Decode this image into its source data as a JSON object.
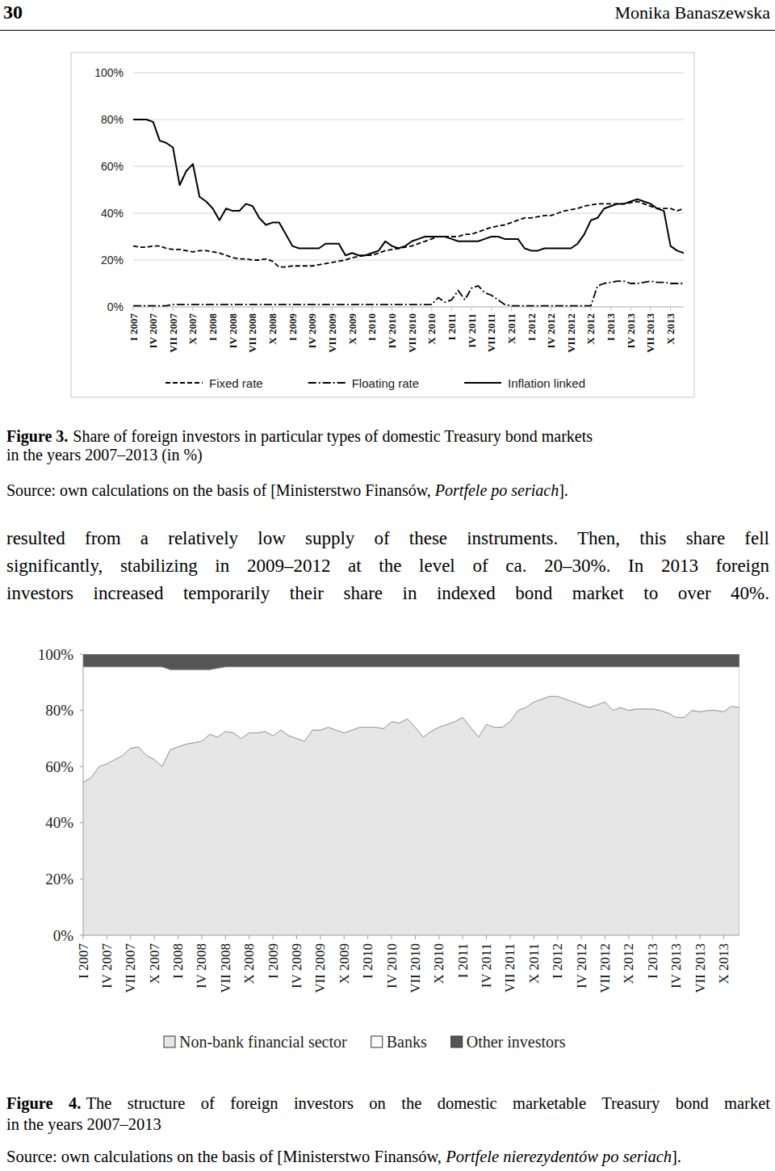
{
  "header": {
    "page": "30",
    "author": "Monika Banaszewska"
  },
  "chart_data": [
    {
      "type": "line",
      "categories": [
        "I 2007",
        null,
        null,
        "IV 2007",
        null,
        null,
        "VII 2007",
        null,
        null,
        "X 2007",
        null,
        null,
        "I 2008",
        null,
        null,
        "IV 2008",
        null,
        null,
        "VII 2008",
        null,
        null,
        "X 2008",
        null,
        null,
        "I 2009",
        null,
        null,
        "IV 2009",
        null,
        null,
        "VII 2009",
        null,
        null,
        "X 2009",
        null,
        null,
        "I 2010",
        null,
        null,
        "IV 2010",
        null,
        null,
        "VII 2010",
        null,
        null,
        "X 2010",
        null,
        null,
        "I 2011",
        null,
        null,
        "IV 2011",
        null,
        null,
        "VII 2011",
        null,
        null,
        "X 2011",
        null,
        null,
        "I 2012",
        null,
        null,
        "IV 2012",
        null,
        null,
        "VII 2012",
        null,
        null,
        "X 2012",
        null,
        null,
        "I 2013",
        null,
        null,
        "IV 2013",
        null,
        null,
        "VII 2013",
        null,
        null,
        "X 2013",
        null,
        null
      ],
      "ylim": [
        0,
        100
      ],
      "yticks": [
        {
          "value": 0,
          "label": "0%"
        },
        {
          "value": 20,
          "label": "20%"
        },
        {
          "value": 40,
          "label": "40%"
        },
        {
          "value": 60,
          "label": "60%"
        },
        {
          "value": 80,
          "label": "80%"
        },
        {
          "value": 100,
          "label": "100%"
        }
      ],
      "grid": true,
      "legend": "bottom",
      "series": [
        {
          "name": "Fixed rate",
          "color": "#000000",
          "line_style": "dashed",
          "values": [
            26,
            25.5,
            25.5,
            26,
            26,
            25,
            24.5,
            24.5,
            24,
            23.5,
            24,
            24,
            23.5,
            23,
            22,
            21,
            20.5,
            20.5,
            20,
            20,
            20.5,
            19.5,
            17,
            17,
            17.5,
            17.5,
            17.5,
            17.5,
            18,
            18.5,
            19,
            19.5,
            20,
            21,
            21.5,
            22,
            22,
            23,
            24,
            24.5,
            25,
            25.5,
            26,
            27,
            28,
            29,
            30,
            30,
            30,
            30,
            31,
            31,
            32,
            33,
            34,
            34.5,
            35,
            36,
            37,
            38,
            38,
            38.5,
            39,
            39,
            40,
            41,
            41.5,
            42,
            43,
            43.5,
            44,
            44,
            44,
            44,
            44,
            44.5,
            45,
            44,
            43,
            42,
            42,
            42,
            41,
            42
          ]
        },
        {
          "name": "Floating rate",
          "color": "#000000",
          "line_style": "dashdot",
          "values": [
            0.5,
            0.5,
            0.5,
            0.5,
            0.5,
            0.5,
            1,
            1,
            1,
            1,
            1,
            1,
            1,
            1,
            1,
            1,
            1,
            1,
            1,
            1,
            1,
            1,
            1,
            1,
            1,
            1,
            1,
            1,
            1,
            1,
            1,
            1,
            1,
            1,
            1,
            1,
            1,
            1,
            1,
            1,
            1,
            1,
            1,
            1,
            1,
            1,
            4,
            2,
            3,
            7,
            3,
            8,
            9,
            6,
            5,
            3,
            1,
            0.5,
            0.5,
            0.5,
            0.5,
            0.5,
            0.5,
            0.5,
            0.5,
            0.5,
            0.5,
            0.5,
            0.5,
            0.5,
            9,
            10,
            10.5,
            11,
            11,
            10,
            10,
            10.5,
            11,
            10.5,
            10.5,
            10,
            10,
            10
          ]
        },
        {
          "name": "Inflation linked",
          "color": "#000000",
          "line_style": "solid",
          "values": [
            80,
            80,
            80,
            79,
            71,
            70,
            68,
            52,
            58,
            61,
            47,
            45,
            42,
            37,
            42,
            41,
            41,
            44,
            43,
            38,
            35,
            36,
            36,
            31,
            26,
            25,
            25,
            25,
            25,
            27,
            27,
            27,
            22,
            23,
            22,
            22,
            23,
            24,
            28,
            26,
            25,
            26,
            28,
            29,
            30,
            30,
            30,
            30,
            29,
            28,
            28,
            28,
            28,
            29,
            30,
            30,
            29,
            29,
            29,
            25,
            24,
            24,
            25,
            25,
            25,
            25,
            25,
            27,
            31,
            37,
            38,
            42,
            43,
            44,
            44,
            45,
            46,
            45,
            44,
            42,
            41,
            26,
            24,
            23
          ]
        }
      ]
    },
    {
      "type": "area",
      "stacked": true,
      "categories": [
        "I 2007",
        null,
        null,
        "IV 2007",
        null,
        null,
        "VII 2007",
        null,
        null,
        "X 2007",
        null,
        null,
        "I 2008",
        null,
        null,
        "IV 2008",
        null,
        null,
        "VII 2008",
        null,
        null,
        "X 2008",
        null,
        null,
        "I 2009",
        null,
        null,
        "IV 2009",
        null,
        null,
        "VII 2009",
        null,
        null,
        "X 2009",
        null,
        null,
        "I 2010",
        null,
        null,
        "IV 2010",
        null,
        null,
        "VII 2010",
        null,
        null,
        "X 2010",
        null,
        null,
        "I 2011",
        null,
        null,
        "IV 2011",
        null,
        null,
        "VII 2011",
        null,
        null,
        "X 2011",
        null,
        null,
        "I 2012",
        null,
        null,
        "IV 2012",
        null,
        null,
        "VII 2012",
        null,
        null,
        "X 2012",
        null,
        null,
        "I 2013",
        null,
        null,
        "IV 2013",
        null,
        null,
        "VII 2013",
        null,
        null,
        "X 2013",
        null,
        null
      ],
      "ylim": [
        0,
        100
      ],
      "yticks": [
        {
          "value": 0,
          "label": "0%"
        },
        {
          "value": 20,
          "label": "20%"
        },
        {
          "value": 40,
          "label": "40%"
        },
        {
          "value": 60,
          "label": "60%"
        },
        {
          "value": 80,
          "label": "80%"
        },
        {
          "value": 100,
          "label": "100%"
        }
      ],
      "grid": false,
      "legend": "bottom",
      "series": [
        {
          "name": "Non-bank financial sector",
          "color": "#e6e6e6",
          "values": [
            54.5,
            56,
            60,
            61,
            62.5,
            64,
            66.5,
            67,
            64,
            62.5,
            60,
            66,
            67,
            68,
            68.5,
            69,
            71.5,
            70.5,
            72.5,
            72,
            70,
            72,
            72,
            72.5,
            71,
            73,
            71,
            70,
            69,
            73,
            73,
            74,
            73,
            72,
            73,
            74,
            74,
            74,
            73.5,
            76,
            75.5,
            77,
            74,
            70.5,
            72.5,
            74,
            75,
            76,
            77.5,
            74,
            70.5,
            75,
            74,
            74,
            76,
            80,
            81,
            83,
            84,
            85,
            85,
            84,
            83,
            82,
            81,
            82,
            83,
            80,
            81,
            80,
            80.5,
            80.5,
            80.5,
            80,
            79,
            77.5,
            77.5,
            80,
            79.5,
            80,
            80,
            79.5,
            81.5,
            81
          ]
        },
        {
          "name": "Banks",
          "color": "#ffffff",
          "values": [
            41,
            39.5,
            35.5,
            34.5,
            33,
            31.5,
            29,
            28.5,
            31.5,
            33,
            35.5,
            28.5,
            27.5,
            26.5,
            26,
            25.5,
            23,
            24.5,
            23,
            23.5,
            25.5,
            23.5,
            23.5,
            23,
            24.5,
            22.5,
            24.5,
            25.5,
            26.5,
            22.5,
            22.5,
            21.5,
            22.5,
            23.5,
            22.5,
            21.5,
            21.5,
            21.5,
            22,
            19.5,
            20,
            18.5,
            21.5,
            25,
            23,
            21.5,
            20.5,
            19.5,
            18,
            21.5,
            25,
            20.5,
            21.5,
            21.5,
            19.5,
            15.5,
            14.5,
            12.5,
            11.5,
            10.5,
            10.5,
            11.5,
            12.5,
            13.5,
            14.5,
            13.5,
            12.5,
            15.5,
            14.5,
            15.5,
            15,
            15,
            15,
            15.5,
            16.5,
            18,
            18,
            15.5,
            16,
            15.5,
            15.5,
            16,
            14,
            14.5
          ]
        },
        {
          "name": "Other investors",
          "color": "#555555",
          "values": [
            4.5,
            4.5,
            4.5,
            4.5,
            4.5,
            4.5,
            4.5,
            4.5,
            4.5,
            4.5,
            4.5,
            5.5,
            5.5,
            5.5,
            5.5,
            5.5,
            5.5,
            5,
            4.5,
            4.5,
            4.5,
            4.5,
            4.5,
            4.5,
            4.5,
            4.5,
            4.5,
            4.5,
            4.5,
            4.5,
            4.5,
            4.5,
            4.5,
            4.5,
            4.5,
            4.5,
            4.5,
            4.5,
            4.5,
            4.5,
            4.5,
            4.5,
            4.5,
            4.5,
            4.5,
            4.5,
            4.5,
            4.5,
            4.5,
            4.5,
            4.5,
            4.5,
            4.5,
            4.5,
            4.5,
            4.5,
            4.5,
            4.5,
            4.5,
            4.5,
            4.5,
            4.5,
            4.5,
            4.5,
            4.5,
            4.5,
            4.5,
            4.5,
            4.5,
            4.5,
            4.5,
            4.5,
            4.5,
            4.5,
            4.5,
            4.5,
            4.5,
            4.5,
            4.5,
            4.5,
            4.5,
            4.5,
            4.5,
            4.5
          ]
        }
      ]
    }
  ],
  "figures": [
    {
      "label": "Figure 3.",
      "caption_lines": [
        "Share of foreign investors in particular types of domestic Treasury bond markets",
        "in the years 2007–2013 (in %)"
      ],
      "source": {
        "text": "Source: own calculations on the basis of [Ministerstwo Finansów, ",
        "italic": "Portfele po seriach",
        "end": "]."
      }
    },
    {
      "label": "Figure 4.",
      "caption_lines": [
        "The structure of foreign investors on the domestic marketable Treasury bond market",
        "in the years 2007–2013"
      ],
      "source": {
        "text": "Source: own calculations on the basis of [Ministerstwo Finansów, ",
        "italic": "Portfele nierezydentów po seriach",
        "end": "]."
      }
    }
  ],
  "body_lines": [
    "resulted from a relatively low supply of these instruments. Then, this share fell",
    "significantly, stabilizing in 2009–2012 at the level of ca. 20–30%. In 2013 foreign",
    "investors increased temporarily their share in indexed bond market to over 40%."
  ]
}
